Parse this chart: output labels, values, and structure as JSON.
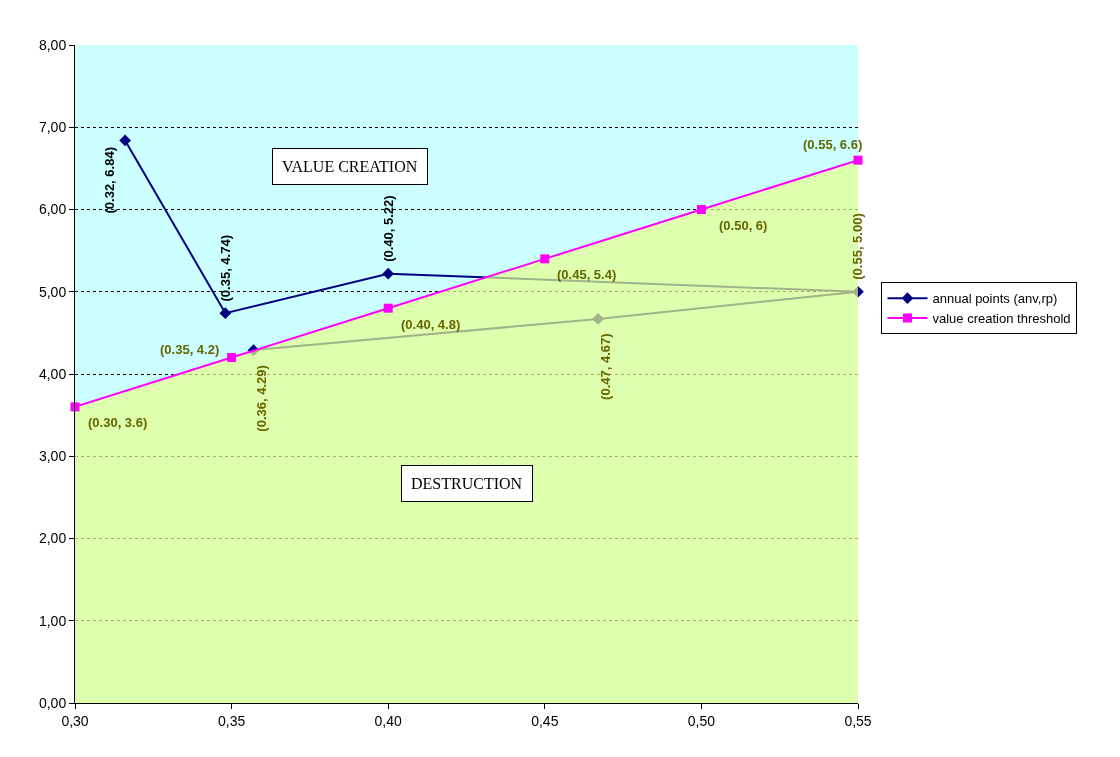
{
  "chart_data": {
    "type": "line",
    "series": [
      {
        "name": "annual points (anv,rp)",
        "color": "#000080",
        "x": [
          0.316,
          0.348,
          0.4,
          0.55,
          0.467,
          0.357
        ],
        "values": [
          6.84,
          4.74,
          5.22,
          5.0,
          4.67,
          4.29
        ],
        "marker": "diamond",
        "value_labels": [
          "(0.32, 6.84)",
          "(0.35, 4.74)",
          "(0.40, 5.22)",
          "(0.55, 5.00)",
          "(0.47, 4.67)",
          "(0.36, 4.29)"
        ]
      },
      {
        "type": "area",
        "color": "#e6ff8c",
        "x": [
          0.3,
          0.35,
          0.4,
          0.45,
          0.5,
          0.55
        ],
        "values": [
          3.6,
          4.2,
          4.8,
          5.4,
          6,
          6.6
        ]
      },
      {
        "name": "value creation threshold",
        "color": "#ff00ff",
        "x": [
          0.3,
          0.35,
          0.4,
          0.45,
          0.5,
          0.55
        ],
        "values": [
          3.6,
          4.2,
          4.8,
          5.4,
          6,
          6.6
        ],
        "marker": "square",
        "value_labels": [
          "(0.30, 3.6)",
          "(0.35, 4.2)",
          "(0.40, 4.8)",
          "(0.45, 5.4)",
          "(0.50, 6)",
          "(0.55, 6.6)"
        ]
      }
    ],
    "bands": [
      {
        "axis": "y",
        "from": 0,
        "to": 8,
        "color": "#ccffff"
      }
    ],
    "annotations": [
      "VALUE CREATION",
      "DESTRUCTION"
    ],
    "xlim": [
      0.3,
      0.55
    ],
    "xticks": [
      {
        "value": 0.3,
        "label": "0,30"
      },
      {
        "value": 0.35,
        "label": "0,35"
      },
      {
        "value": 0.4,
        "label": "0,40"
      },
      {
        "value": 0.45,
        "label": "0,45"
      },
      {
        "value": 0.5,
        "label": "0,50"
      },
      {
        "value": 0.55,
        "label": "0,55"
      }
    ],
    "ylim": [
      0,
      8
    ],
    "yticks": [
      {
        "value": 0,
        "label": "0,00"
      },
      {
        "value": 1,
        "label": "1,00"
      },
      {
        "value": 2,
        "label": "2,00"
      },
      {
        "value": 3,
        "label": "3,00"
      },
      {
        "value": 4,
        "label": "4,00"
      },
      {
        "value": 5,
        "label": "5,00"
      },
      {
        "value": 6,
        "label": "6,00"
      },
      {
        "value": 7,
        "label": "7,00"
      },
      {
        "value": 8,
        "label": "8,00"
      }
    ],
    "grid": "y",
    "legend": "right",
    "line_style": "solid"
  }
}
